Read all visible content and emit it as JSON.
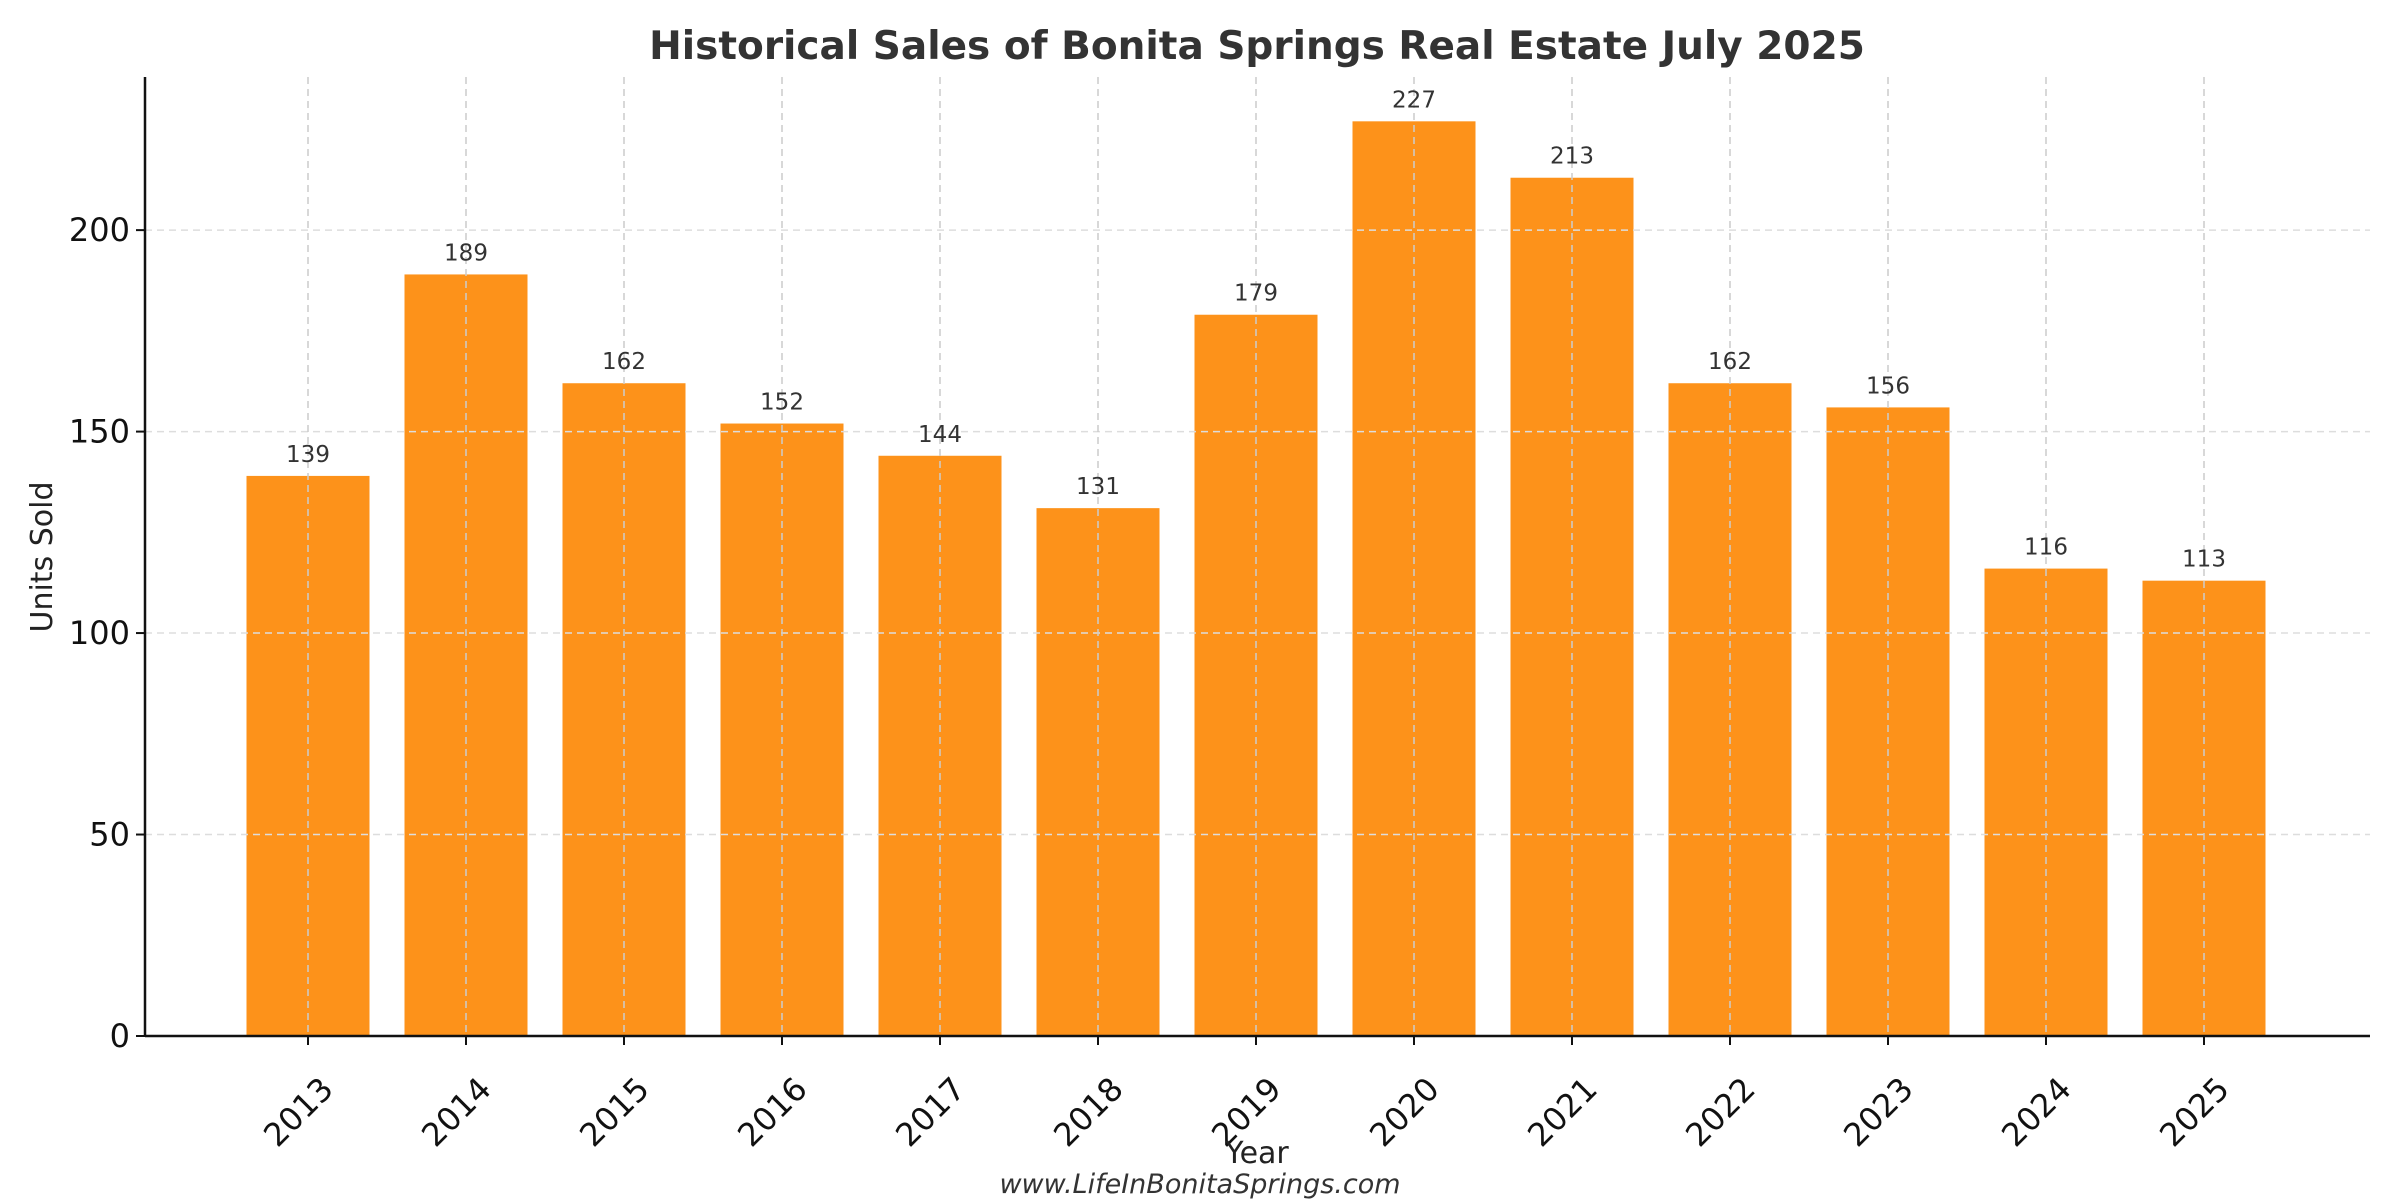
{
  "chart_data": {
    "type": "bar",
    "title": "Historical Sales of Bonita Springs Real Estate July 2025",
    "xlabel": "Year",
    "ylabel": "Units Sold",
    "categories": [
      "2013",
      "2014",
      "2015",
      "2016",
      "2017",
      "2018",
      "2019",
      "2020",
      "2021",
      "2022",
      "2023",
      "2024",
      "2025"
    ],
    "values": [
      139,
      189,
      162,
      152,
      144,
      131,
      179,
      227,
      213,
      162,
      156,
      116,
      113
    ],
    "ylim": [
      0,
      238
    ],
    "yticks": [
      0,
      50,
      100,
      150,
      200
    ],
    "grid": true,
    "bar_color": "#fd921a",
    "footer": "www.LifeInBonitaSprings.com"
  }
}
